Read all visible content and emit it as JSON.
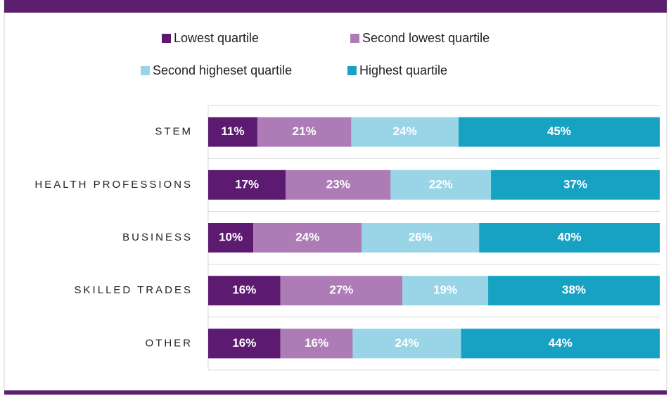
{
  "chart_data": {
    "type": "stacked_bar_horizontal",
    "stacking": "percent",
    "categories": [
      "STEM",
      "HEALTH PROFESSIONS",
      "BUSINESS",
      "SKILLED TRADES",
      "OTHER"
    ],
    "series": [
      {
        "name": "Lowest quartile",
        "color": "#5c1a70",
        "values": [
          11,
          17,
          10,
          16,
          16
        ],
        "value_labels": [
          "11%",
          "17%",
          "10%",
          "16%",
          "16%"
        ]
      },
      {
        "name": "Second lowest quartile",
        "color": "#ad7bb6",
        "values": [
          21,
          23,
          24,
          27,
          16
        ],
        "value_labels": [
          "21%",
          "23%",
          "24%",
          "27%",
          "16%"
        ]
      },
      {
        "name": "Second higheset quartile",
        "color": "#99d5e7",
        "values": [
          24,
          22,
          26,
          19,
          24
        ],
        "value_labels": [
          "24%",
          "22%",
          "26%",
          "19%",
          "24%"
        ]
      },
      {
        "name": "Highest quartile",
        "color": "#17a2c3",
        "values": [
          45,
          37,
          40,
          38,
          44
        ],
        "value_labels": [
          "45%",
          "37%",
          "40%",
          "38%",
          "44%"
        ]
      }
    ],
    "grid": true
  }
}
